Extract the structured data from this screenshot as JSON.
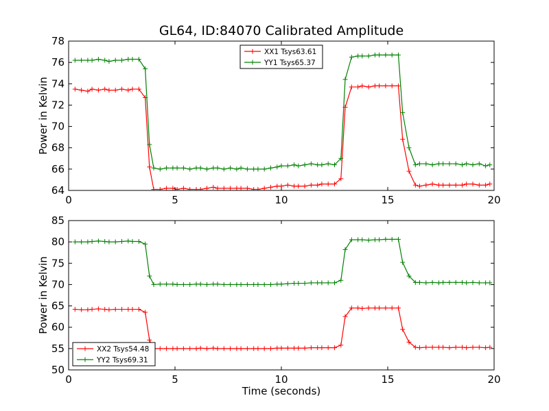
{
  "title": "GL64, ID:84070 Calibrated Amplitude",
  "xlabel": "Time (seconds)",
  "colors": {
    "red": "#ff0000",
    "green": "#008000"
  },
  "chart_data": [
    {
      "type": "line",
      "ylabel": "Power in Kelvin",
      "xlim": [
        0,
        20
      ],
      "ylim": [
        64,
        78
      ],
      "xticks": [
        0,
        5,
        10,
        15,
        20
      ],
      "yticks": [
        64,
        66,
        68,
        70,
        72,
        74,
        76,
        78
      ],
      "legend_position": "top-center",
      "x": [
        0.3,
        0.6,
        0.9,
        1.1,
        1.4,
        1.7,
        1.9,
        2.2,
        2.5,
        2.8,
        3.0,
        3.3,
        3.6,
        3.8,
        4.0,
        4.3,
        4.6,
        4.9,
        5.1,
        5.4,
        5.7,
        6.0,
        6.2,
        6.5,
        6.8,
        7.0,
        7.3,
        7.6,
        7.9,
        8.1,
        8.4,
        8.7,
        8.9,
        9.2,
        9.5,
        9.8,
        10.0,
        10.3,
        10.6,
        10.8,
        11.1,
        11.4,
        11.7,
        11.9,
        12.2,
        12.5,
        12.8,
        13.0,
        13.3,
        13.6,
        13.8,
        14.1,
        14.4,
        14.6,
        14.9,
        15.2,
        15.5,
        15.7,
        16.0,
        16.3,
        16.5,
        16.8,
        17.1,
        17.4,
        17.6,
        17.9,
        18.2,
        18.5,
        18.7,
        19.0,
        19.3,
        19.6,
        19.8
      ],
      "series": [
        {
          "name": "XX1 Tsys63.61",
          "color": "#ff0000",
          "values": [
            73.5,
            73.4,
            73.3,
            73.5,
            73.4,
            73.5,
            73.4,
            73.4,
            73.5,
            73.4,
            73.5,
            73.5,
            72.7,
            66.2,
            64.1,
            64.1,
            64.2,
            64.2,
            64.1,
            64.2,
            64.1,
            64.1,
            64.1,
            64.2,
            64.3,
            64.2,
            64.2,
            64.2,
            64.2,
            64.2,
            64.2,
            64.1,
            64.1,
            64.2,
            64.3,
            64.4,
            64.4,
            64.5,
            64.4,
            64.4,
            64.4,
            64.5,
            64.5,
            64.6,
            64.6,
            64.6,
            65.1,
            71.8,
            73.7,
            73.7,
            73.8,
            73.7,
            73.8,
            73.8,
            73.8,
            73.8,
            73.8,
            68.8,
            65.8,
            64.5,
            64.4,
            64.5,
            64.6,
            64.5,
            64.5,
            64.5,
            64.5,
            64.5,
            64.6,
            64.6,
            64.5,
            64.5,
            64.6
          ]
        },
        {
          "name": "YY1 Tsys65.37",
          "color": "#008000",
          "values": [
            76.2,
            76.2,
            76.2,
            76.2,
            76.3,
            76.2,
            76.1,
            76.2,
            76.2,
            76.3,
            76.3,
            76.3,
            75.4,
            68.3,
            66.1,
            66.0,
            66.1,
            66.1,
            66.1,
            66.1,
            66.0,
            66.1,
            66.1,
            66.0,
            66.1,
            66.1,
            66.0,
            66.1,
            66.0,
            66.1,
            66.0,
            66.0,
            66.0,
            66.0,
            66.1,
            66.2,
            66.3,
            66.3,
            66.4,
            66.3,
            66.4,
            66.5,
            66.4,
            66.4,
            66.5,
            66.4,
            67.0,
            74.4,
            76.5,
            76.6,
            76.6,
            76.6,
            76.7,
            76.7,
            76.7,
            76.7,
            76.7,
            71.3,
            68.0,
            66.4,
            66.5,
            66.5,
            66.4,
            66.5,
            66.5,
            66.5,
            66.5,
            66.4,
            66.5,
            66.4,
            66.5,
            66.3,
            66.4
          ]
        }
      ]
    },
    {
      "type": "line",
      "ylabel": "Power in Kelvin",
      "xlabel": "Time (seconds)",
      "xlim": [
        0,
        20
      ],
      "ylim": [
        50,
        85
      ],
      "xticks": [
        0,
        5,
        10,
        15,
        20
      ],
      "yticks": [
        50,
        55,
        60,
        65,
        70,
        75,
        80,
        85
      ],
      "legend_position": "bottom-left",
      "x": [
        0.3,
        0.6,
        0.9,
        1.1,
        1.4,
        1.7,
        1.9,
        2.2,
        2.5,
        2.8,
        3.0,
        3.3,
        3.6,
        3.8,
        4.0,
        4.3,
        4.6,
        4.9,
        5.1,
        5.4,
        5.7,
        6.0,
        6.2,
        6.5,
        6.8,
        7.0,
        7.3,
        7.6,
        7.9,
        8.1,
        8.4,
        8.7,
        8.9,
        9.2,
        9.5,
        9.8,
        10.0,
        10.3,
        10.6,
        10.8,
        11.1,
        11.4,
        11.7,
        11.9,
        12.2,
        12.5,
        12.8,
        13.0,
        13.3,
        13.6,
        13.8,
        14.1,
        14.4,
        14.6,
        14.9,
        15.2,
        15.5,
        15.7,
        16.0,
        16.3,
        16.5,
        16.8,
        17.1,
        17.4,
        17.6,
        17.9,
        18.2,
        18.5,
        18.7,
        19.0,
        19.3,
        19.6,
        19.8
      ],
      "series": [
        {
          "name": "XX2 Tsys54.48",
          "color": "#ff0000",
          "values": [
            64.2,
            64.1,
            64.1,
            64.2,
            64.3,
            64.2,
            64.1,
            64.2,
            64.2,
            64.2,
            64.2,
            64.2,
            63.5,
            57.0,
            55.0,
            55.0,
            55.0,
            55.0,
            55.0,
            55.0,
            55.0,
            55.0,
            55.1,
            55.0,
            55.1,
            55.0,
            55.0,
            55.0,
            55.0,
            55.0,
            55.0,
            55.0,
            55.0,
            55.0,
            55.0,
            55.1,
            55.1,
            55.1,
            55.1,
            55.1,
            55.1,
            55.2,
            55.2,
            55.2,
            55.2,
            55.2,
            55.8,
            62.5,
            64.5,
            64.5,
            64.4,
            64.5,
            64.5,
            64.5,
            64.5,
            64.5,
            64.5,
            59.5,
            56.5,
            55.3,
            55.2,
            55.3,
            55.3,
            55.3,
            55.3,
            55.2,
            55.3,
            55.3,
            55.2,
            55.3,
            55.3,
            55.2,
            55.3
          ]
        },
        {
          "name": "YY2 Tsys69.31",
          "color": "#008000",
          "values": [
            80.0,
            80.0,
            80.0,
            80.1,
            80.2,
            80.1,
            80.0,
            80.0,
            80.1,
            80.2,
            80.1,
            80.1,
            79.5,
            72.0,
            70.0,
            70.1,
            70.1,
            70.1,
            70.0,
            70.0,
            70.0,
            70.1,
            70.1,
            70.0,
            70.1,
            70.1,
            70.0,
            70.0,
            70.0,
            70.0,
            70.0,
            70.0,
            70.0,
            70.0,
            70.0,
            70.1,
            70.1,
            70.2,
            70.3,
            70.3,
            70.3,
            70.4,
            70.4,
            70.4,
            70.4,
            70.4,
            71.0,
            78.2,
            80.5,
            80.5,
            80.5,
            80.4,
            80.5,
            80.5,
            80.6,
            80.6,
            80.6,
            75.2,
            72.0,
            70.5,
            70.5,
            70.4,
            70.5,
            70.4,
            70.5,
            70.5,
            70.5,
            70.5,
            70.4,
            70.5,
            70.4,
            70.4,
            70.4
          ]
        }
      ]
    }
  ]
}
